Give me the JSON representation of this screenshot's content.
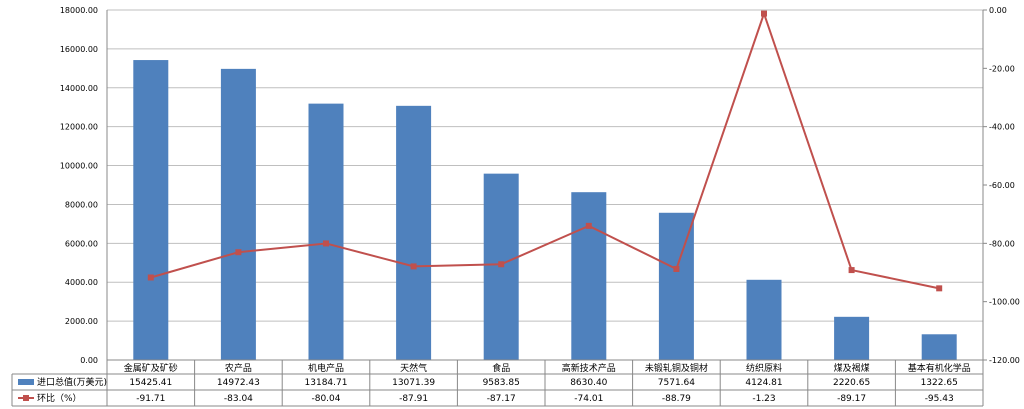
{
  "chart_data": {
    "type": "bar",
    "categories": [
      "金属矿及矿砂",
      "农产品",
      "机电产品",
      "天然气",
      "食品",
      "高新技术产品",
      "未锻轧铜及铜材",
      "纺织原料",
      "煤及褐煤",
      "基本有机化学品"
    ],
    "series": [
      {
        "name": "进口总值(万美元)",
        "type": "bar",
        "axis": "left",
        "color": "#4f81bd",
        "values": [
          15425.41,
          14972.43,
          13184.71,
          13071.39,
          9583.85,
          8630.4,
          7571.64,
          4124.81,
          2220.65,
          1322.65
        ],
        "value_labels": [
          "15425.41",
          "14972.43",
          "13184.71",
          "13071.39",
          "9583.85",
          "8630.40",
          "7571.64",
          "4124.81",
          "2220.65",
          "1322.65"
        ]
      },
      {
        "name": "环比（%）",
        "type": "line",
        "axis": "right",
        "color": "#c0504d",
        "values": [
          -91.71,
          -83.04,
          -80.04,
          -87.91,
          -87.17,
          -74.01,
          -88.79,
          -1.23,
          -89.17,
          -95.43
        ],
        "value_labels": [
          "-91.71",
          "-83.04",
          "-80.04",
          "-87.91",
          "-87.17",
          "-74.01",
          "-88.79",
          "-1.23",
          "-89.17",
          "-95.43"
        ]
      }
    ],
    "y_left": {
      "ylim": [
        0,
        18000
      ],
      "ticks": [
        "0.00",
        "2000.00",
        "4000.00",
        "6000.00",
        "8000.00",
        "10000.00",
        "12000.00",
        "14000.00",
        "16000.00",
        "18000.00"
      ]
    },
    "y_right": {
      "ylim": [
        -120,
        0
      ],
      "ticks": [
        "-120.00",
        "-100.00",
        "-80.00",
        "-60.00",
        "-40.00",
        "-20.00",
        "0.00"
      ]
    },
    "grid": true,
    "legend": "data-table-left",
    "title": "",
    "xlabel": "",
    "ylabel": ""
  }
}
